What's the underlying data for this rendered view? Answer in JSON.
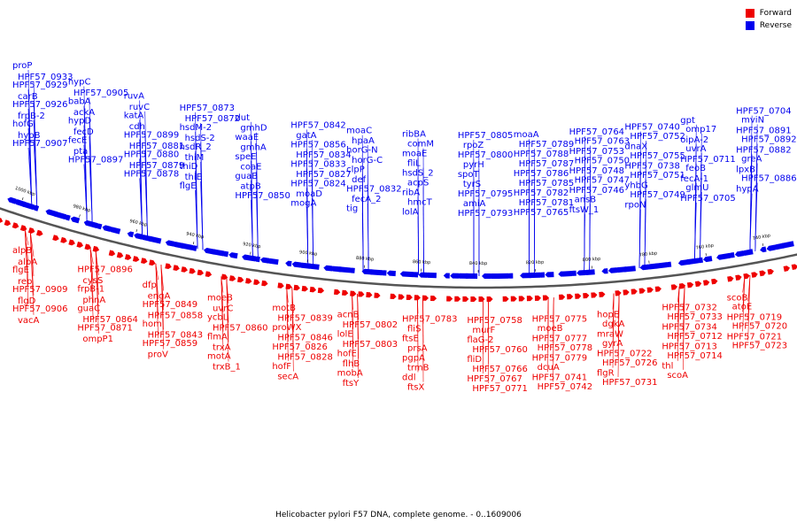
{
  "caption": "Helicobacter pylori F57 DNA, complete genome. - 0..1609006",
  "legend": [
    {
      "label": "Forward",
      "color": "#ee0000"
    },
    {
      "label": "Reverse",
      "color": "#0000ee"
    }
  ],
  "colors": {
    "forward": "#ee0000",
    "reverse": "#0000ee",
    "backbone": "#555555"
  },
  "ticks": [
    "1000 kbp",
    "980 kbp",
    "960 kbp",
    "940 kbp",
    "920 kbp",
    "900 kbp",
    "880 kbp",
    "860 kbp",
    "840 kbp",
    "820 kbp",
    "800 kbp",
    "780 kbp",
    "760 kbp",
    "740 kbp"
  ],
  "reverse_labels": [
    "proP",
    "HPF57_0933",
    "HPF57_0929",
    "carB",
    "HPF57_0926",
    "frpB-2",
    "hofG",
    "hypB",
    "HPF57_0907",
    "hypC",
    "HPF57_0905",
    "babA",
    "ackA",
    "hypD",
    "fecD",
    "fecE",
    "pta",
    "HPF57_0897",
    "ruvA",
    "ruvC",
    "katA",
    "cdh",
    "HPF57_0899",
    "HPF57_0881",
    "HPF57_0880",
    "HPF57_0879",
    "HPF57_0878",
    "HPF57_0873",
    "HPF57_0872",
    "hsdM-2",
    "hsdS-2",
    "hsdR_2",
    "thiM",
    "thiD",
    "thiE",
    "flgE",
    "dut",
    "gmhD",
    "waaE",
    "gmhA",
    "speE",
    "coaE",
    "guaB",
    "atpB",
    "HPF57_0850",
    "HPF57_0842",
    "gatA",
    "HPF57_0856",
    "HPF57_0834",
    "HPF57_0833",
    "HPF57_0827",
    "HPF57_0824",
    "moaD",
    "mogA",
    "moaC",
    "hpaA",
    "horG-N",
    "horG-C",
    "clpP",
    "def",
    "HPF57_0832",
    "fecA_2",
    "tig",
    "ribBA",
    "comM",
    "moaE",
    "fliL",
    "hsdS_2",
    "acpS",
    "ribA",
    "hmcT",
    "lolA",
    "HPF57_0805",
    "rpoZ",
    "HPF57_0800",
    "pyrH",
    "spoT",
    "tyrS",
    "HPF57_0795",
    "amiA",
    "HPF57_0793",
    "moaA",
    "HPF57_0789",
    "HPF57_0788",
    "HPF57_0787",
    "HPF57_0786",
    "HPF57_0785",
    "HPF57_0782",
    "HPF57_0781",
    "HPF57_0765",
    "HPF57_0764",
    "HPF57_0763",
    "HPF57_0753",
    "HPF57_0750",
    "HPF57_0748",
    "HPF57_0747",
    "HPF57_0746",
    "ansB",
    "ftsW_1",
    "HPF57_0740",
    "HPF57_0752",
    "dnaX",
    "HPF57_0755",
    "HPF57_0738",
    "HPF57_0751",
    "yhbG",
    "HPF57_0749",
    "rpoN",
    "gpt",
    "omp17",
    "oipA-2",
    "uvrA",
    "HPF57_0711",
    "feoB",
    "fecA-1",
    "glmU",
    "HPF57_0705",
    "HPF57_0704",
    "mviN",
    "HPF57_0891",
    "HPF57_0892",
    "HPF57_0882",
    "greA",
    "lpxB",
    "HPF57_0886",
    "hypA"
  ],
  "forward_labels": [
    "alpB",
    "alpA",
    "flgE",
    "rep",
    "HPF57_0909",
    "flgD",
    "HPF57_0906",
    "vacA",
    "HPF57_0896",
    "cysS",
    "frpB-1",
    "phnA",
    "guaC",
    "HPF57_0864",
    "HPF57_0871",
    "ompP1",
    "dfp",
    "engA",
    "HPF57_0849",
    "HPF57_0858",
    "hom",
    "HPF57_0843",
    "HPF57_0859",
    "proV",
    "moeB",
    "uvrC",
    "ycbL",
    "HPF57_0860",
    "flmA",
    "trxA",
    "motA",
    "trxB_1",
    "motB",
    "HPF57_0839",
    "proWX",
    "HPF57_0846",
    "HPF57_0826",
    "HPF57_0828",
    "hofF",
    "secA",
    "acnB",
    "HPF57_0802",
    "lolE",
    "HPF57_0803",
    "hofE",
    "flhB",
    "mobA",
    "ftsY",
    "HPF57_0783",
    "fliS",
    "ftsE",
    "prsA",
    "pgpA",
    "trmB",
    "ddl",
    "ftsX",
    "HPF57_0758",
    "murF",
    "flaG-2",
    "HPF57_0760",
    "fliD",
    "HPF57_0766",
    "HPF57_0767",
    "HPF57_0771",
    "HPF57_0775",
    "moeB",
    "HPF57_0777",
    "HPF57_0778",
    "HPF57_0779",
    "dcuA",
    "HPF57_0741",
    "HPF57_0742",
    "hopE",
    "dgkA",
    "mraW",
    "gyrA",
    "HPF57_0722",
    "HPF57_0726",
    "flgR",
    "HPF57_0731",
    "HPF57_0732",
    "HPF57_0733",
    "HPF57_0734",
    "HPF57_0712",
    "HPF57_0713",
    "HPF57_0714",
    "thl",
    "scoA",
    "scoB",
    "atoE",
    "HPF57_0719",
    "HPF57_0720",
    "HPF57_0721",
    "HPF57_0723"
  ]
}
